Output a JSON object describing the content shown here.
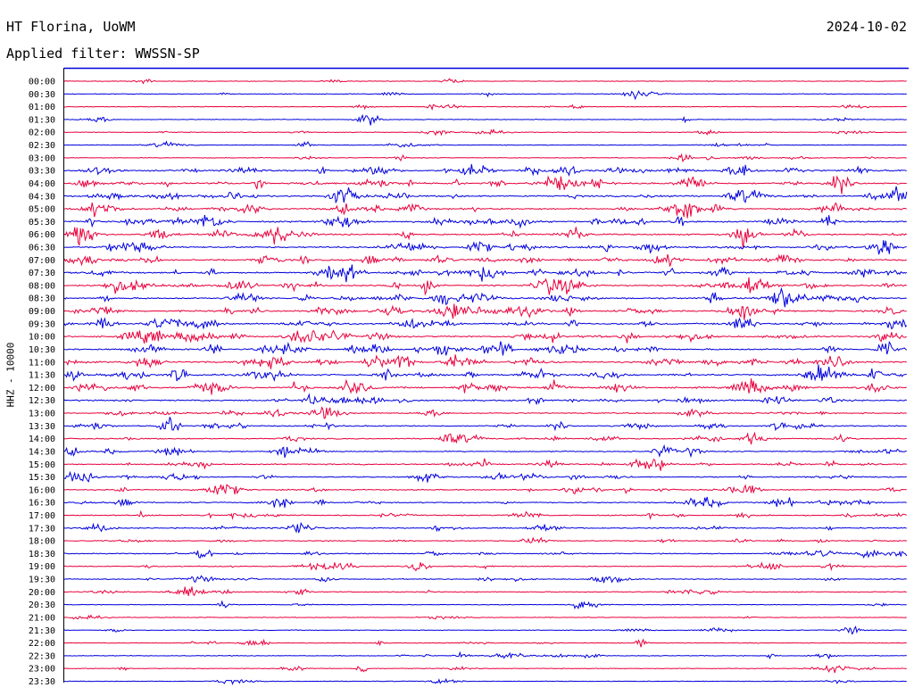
{
  "header": {
    "station": "HT Florina, UoWM",
    "date": "2024-10-02",
    "filter": "Applied filter: WWSSN-SP"
  },
  "colors": {
    "trace_odd": "#0000dd",
    "trace_even": "#e8003c",
    "frame": "#000000",
    "background": "#ffffff"
  },
  "chart_data": {
    "type": "line",
    "ylabel": "HHZ - 10000",
    "row_labels": [
      "00:00",
      "00:30",
      "01:00",
      "01:30",
      "02:00",
      "02:30",
      "03:00",
      "03:30",
      "04:00",
      "04:30",
      "05:00",
      "05:30",
      "06:00",
      "06:30",
      "07:00",
      "07:30",
      "08:00",
      "08:30",
      "09:00",
      "09:30",
      "10:00",
      "10:30",
      "11:00",
      "11:30",
      "12:00",
      "12:30",
      "13:00",
      "13:30",
      "14:00",
      "14:30",
      "15:00",
      "15:30",
      "16:00",
      "16:30",
      "17:00",
      "17:30",
      "18:00",
      "18:30",
      "19:00",
      "19:30",
      "20:00",
      "20:30",
      "21:00",
      "21:30",
      "22:00",
      "22:30",
      "23:00",
      "23:30"
    ],
    "row_minutes": 30,
    "colors_alternate": [
      "blue",
      "red"
    ]
  }
}
